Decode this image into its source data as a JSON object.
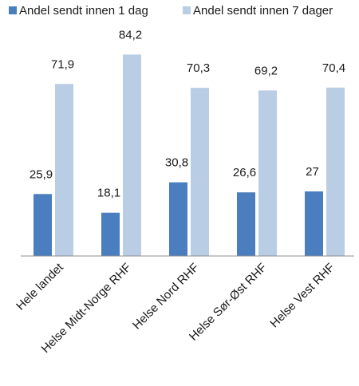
{
  "chart_data": {
    "type": "bar",
    "title": "",
    "xlabel": "",
    "ylabel": "",
    "categories": [
      "Hele landet",
      "Helse Midt-Norge RHF",
      "Helse Nord RHF",
      "Helse Sør-Øst RHF",
      "Helse Vest RHF"
    ],
    "series": [
      {
        "name": "Andel sendt innen 1 dag",
        "values": [
          25.9,
          18.1,
          30.8,
          26.6,
          27
        ],
        "labels": [
          "25,9",
          "18,1",
          "30,8",
          "26,6",
          "27"
        ],
        "color": "#4a7ebf"
      },
      {
        "name": "Andel sendt innen 7 dager",
        "values": [
          71.9,
          84.2,
          70.3,
          69.2,
          70.4
        ],
        "labels": [
          "71,9",
          "84,2",
          "70,3",
          "69,2",
          "70,4"
        ],
        "color": "#b9cde5"
      }
    ],
    "ylim": [
      0,
      90
    ],
    "grid": false,
    "legend_position": "top"
  }
}
